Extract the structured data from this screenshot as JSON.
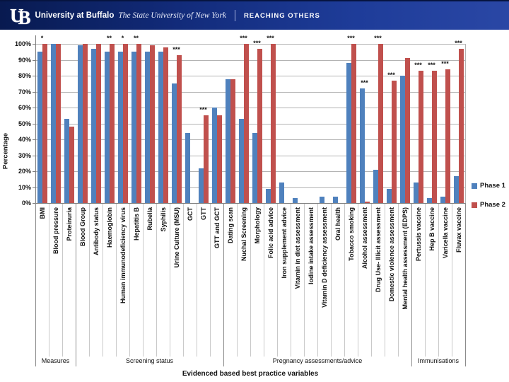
{
  "header": {
    "logo_text": "UB",
    "university_name": "University at Buffalo",
    "university_tagline": "The State University of New York",
    "slogan": "REACHING OTHERS"
  },
  "chart_data": {
    "type": "bar",
    "ylabel": "Percentage",
    "xlabel": "Evidenced based best practice variables",
    "ylim": [
      0,
      100
    ],
    "yticks": [
      "100%",
      "90%",
      "80%",
      "70%",
      "60%",
      "50%",
      "40%",
      "30%",
      "20%",
      "10%",
      "0%"
    ],
    "grid": true,
    "legend_position": "right",
    "categories": [
      "BMI",
      "Blood pressure",
      "Proteinuria",
      "Blood Group",
      "Antibody status",
      "Haemoglobin",
      "Human immunodeficiency virus",
      "Hepatitis B",
      "Rubella",
      "Syphilis",
      "Urine Culture (MSU)",
      "GCT",
      "GTT",
      "GTT and GCT",
      "Dating scan",
      "Nuchal Screening",
      "Morphology",
      "Folic acid advice",
      "Iron supplement advice",
      "Vitamin in diet assessment",
      "Iodine intake assessment",
      "Vitamin D deficiency assessment",
      "Oral health",
      "Tobacco smoking",
      "Alcohol assessment",
      "Drug Use- Illicit assessment",
      "Domestic violence assessment",
      "Mental health assessment (EDPS)",
      "Pertussis vaccine",
      "Hep B vaccine",
      "Varicella vaccine",
      "Fluvax vaccine"
    ],
    "series": [
      {
        "name": "Phase 1",
        "color": "#4F81BD",
        "values": [
          95,
          100,
          53,
          99,
          97,
          95,
          95,
          95,
          95,
          95,
          75,
          44,
          22,
          60,
          78,
          53,
          44,
          9,
          13,
          3,
          0,
          4,
          4,
          88,
          72,
          21,
          9,
          80,
          13,
          3,
          4,
          17
        ]
      },
      {
        "name": "Phase 2",
        "color": "#C0504D",
        "values": [
          100,
          100,
          48,
          100,
          100,
          100,
          100,
          100,
          99,
          98,
          93,
          0,
          55,
          55,
          78,
          100,
          97,
          100,
          0,
          0,
          0,
          0,
          0,
          100,
          1,
          100,
          77,
          91,
          83,
          83,
          84,
          97
        ]
      }
    ],
    "significance_markers": [
      "*",
      "",
      "",
      "",
      "",
      "**",
      "*",
      "**",
      "",
      "",
      "***",
      "",
      "***",
      "",
      "",
      "***",
      "***",
      "***",
      "",
      "",
      "",
      "",
      "",
      "***",
      "***",
      "***",
      "***",
      "",
      "***",
      "***",
      "***",
      "***"
    ],
    "groups": [
      {
        "label": "Measures",
        "count": 3
      },
      {
        "label": "Screening status",
        "count": 11
      },
      {
        "label": "Pregnancy assessments/advice",
        "count": 14
      },
      {
        "label": "Immunisations",
        "count": 4
      }
    ]
  }
}
